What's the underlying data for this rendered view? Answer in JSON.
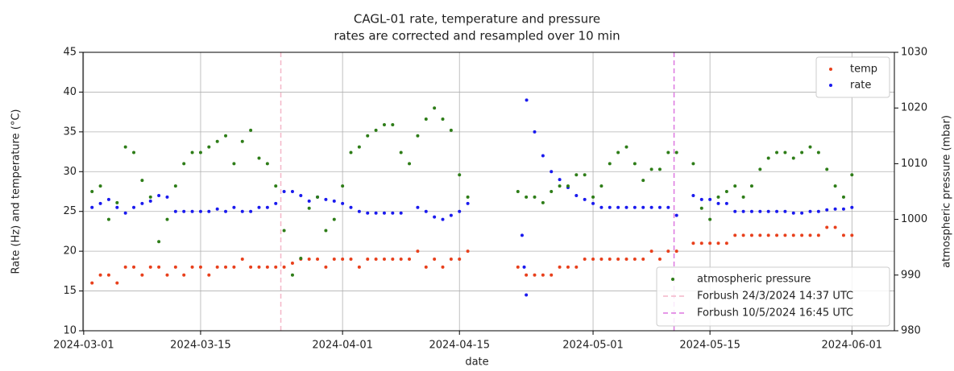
{
  "chart_data": {
    "type": "scatter",
    "title": "CAGL-01 rate, temperature and pressure",
    "subtitle": "rates are corrected and resampled over 10 min",
    "xlabel": "date",
    "ylabel": "Rate (Hz) and temperature (°C)",
    "y2label": "atmospheric pressure (mbar)",
    "xlim": [
      "2024-02-29T22:00",
      "2024-06-06T02:00"
    ],
    "xticks": [
      "2024-03-01",
      "2024-03-15",
      "2024-04-01",
      "2024-04-15",
      "2024-05-01",
      "2024-05-15",
      "2024-06-01"
    ],
    "ylim": [
      10,
      45
    ],
    "yticks": [
      10,
      15,
      20,
      25,
      30,
      35,
      40,
      45
    ],
    "y2lim": [
      980,
      1030
    ],
    "y2ticks": [
      980,
      990,
      1000,
      1010,
      1020,
      1030
    ],
    "grid": true,
    "legend": "upper right",
    "legend2": "lower right",
    "series": [
      {
        "name": "temp",
        "color": "#e8401c",
        "legend": 1,
        "x": [
          "2024-03-02",
          "2024-03-03",
          "2024-03-04",
          "2024-03-05",
          "2024-03-06",
          "2024-03-07",
          "2024-03-08",
          "2024-03-09",
          "2024-03-10",
          "2024-03-11",
          "2024-03-12",
          "2024-03-13",
          "2024-03-14",
          "2024-03-15",
          "2024-03-16",
          "2024-03-17",
          "2024-03-18",
          "2024-03-19",
          "2024-03-20",
          "2024-03-21",
          "2024-03-22",
          "2024-03-23",
          "2024-03-24",
          "2024-03-25",
          "2024-03-26",
          "2024-03-27",
          "2024-03-28",
          "2024-03-29",
          "2024-03-30",
          "2024-03-31",
          "2024-04-01",
          "2024-04-02",
          "2024-04-03",
          "2024-04-04",
          "2024-04-05",
          "2024-04-06",
          "2024-04-07",
          "2024-04-08",
          "2024-04-09",
          "2024-04-10",
          "2024-04-11",
          "2024-04-12",
          "2024-04-13",
          "2024-04-14",
          "2024-04-15",
          "2024-04-16",
          "2024-04-22",
          "2024-04-23",
          "2024-04-24",
          "2024-04-25",
          "2024-04-26",
          "2024-04-27",
          "2024-04-28",
          "2024-04-29",
          "2024-04-30",
          "2024-05-01",
          "2024-05-02",
          "2024-05-03",
          "2024-05-04",
          "2024-05-05",
          "2024-05-06",
          "2024-05-07",
          "2024-05-08",
          "2024-05-09",
          "2024-05-10",
          "2024-05-11",
          "2024-05-13",
          "2024-05-14",
          "2024-05-15",
          "2024-05-16",
          "2024-05-17",
          "2024-05-18",
          "2024-05-19",
          "2024-05-20",
          "2024-05-21",
          "2024-05-22",
          "2024-05-23",
          "2024-05-24",
          "2024-05-25",
          "2024-05-26",
          "2024-05-27",
          "2024-05-28",
          "2024-05-29",
          "2024-05-30",
          "2024-05-31",
          "2024-06-01"
        ],
        "values": [
          16,
          17,
          17,
          16,
          18,
          18,
          17,
          18,
          18,
          17,
          18,
          17,
          18,
          18,
          17,
          18,
          18,
          18,
          19,
          18,
          18,
          18,
          18,
          18,
          18.5,
          19,
          19,
          19,
          18,
          19,
          19,
          19,
          18,
          19,
          19,
          19,
          19,
          19,
          19,
          20,
          18,
          19,
          18,
          19,
          19,
          20,
          18,
          17,
          17,
          17,
          17,
          18,
          18,
          18,
          19,
          19,
          19,
          19,
          19,
          19,
          19,
          19,
          20,
          19,
          20,
          20,
          21,
          21,
          21,
          21,
          21,
          22,
          22,
          22,
          22,
          22,
          22,
          22,
          22,
          22,
          22,
          22,
          23,
          23,
          22,
          22
        ]
      },
      {
        "name": "rate",
        "color": "#1a1aee",
        "legend": 1,
        "x": [
          "2024-03-02",
          "2024-03-03",
          "2024-03-04",
          "2024-03-05",
          "2024-03-06",
          "2024-03-07",
          "2024-03-08",
          "2024-03-09",
          "2024-03-10",
          "2024-03-11",
          "2024-03-12",
          "2024-03-13",
          "2024-03-14",
          "2024-03-15",
          "2024-03-16",
          "2024-03-17",
          "2024-03-18",
          "2024-03-19",
          "2024-03-20",
          "2024-03-21",
          "2024-03-22",
          "2024-03-23",
          "2024-03-24",
          "2024-03-25",
          "2024-03-26",
          "2024-03-27",
          "2024-03-28",
          "2024-03-29",
          "2024-03-30",
          "2024-03-31",
          "2024-04-01",
          "2024-04-02",
          "2024-04-03",
          "2024-04-04",
          "2024-04-05",
          "2024-04-06",
          "2024-04-07",
          "2024-04-08",
          "2024-04-10",
          "2024-04-11",
          "2024-04-12",
          "2024-04-13",
          "2024-04-14",
          "2024-04-15",
          "2024-04-16",
          "2024-04-22T12:00",
          "2024-04-22T18:00",
          "2024-04-23T00:00",
          "2024-04-23T01:00",
          "2024-04-24",
          "2024-04-25",
          "2024-04-26",
          "2024-04-27",
          "2024-04-28",
          "2024-04-29",
          "2024-04-30",
          "2024-05-01",
          "2024-05-02",
          "2024-05-03",
          "2024-05-04",
          "2024-05-05",
          "2024-05-06",
          "2024-05-07",
          "2024-05-08",
          "2024-05-09",
          "2024-05-10",
          "2024-05-11",
          "2024-05-13",
          "2024-05-14",
          "2024-05-15",
          "2024-05-16",
          "2024-05-17",
          "2024-05-18",
          "2024-05-19",
          "2024-05-20",
          "2024-05-21",
          "2024-05-22",
          "2024-05-23",
          "2024-05-24",
          "2024-05-25",
          "2024-05-26",
          "2024-05-27",
          "2024-05-28",
          "2024-05-29",
          "2024-05-30",
          "2024-05-31",
          "2024-06-01"
        ],
        "values": [
          25.5,
          26,
          26.5,
          25.5,
          24.8,
          25.5,
          26,
          26.3,
          27,
          26.8,
          25,
          25,
          25,
          25,
          25,
          25.3,
          25,
          25.5,
          25,
          25,
          25.5,
          25.5,
          26,
          27.5,
          27.5,
          27,
          26.3,
          26.8,
          26.5,
          26.3,
          26,
          25.5,
          25,
          24.8,
          24.8,
          24.8,
          24.8,
          24.8,
          25.5,
          25,
          24.3,
          24,
          24.5,
          25,
          26,
          22,
          18,
          14.5,
          39,
          35,
          32,
          30,
          29,
          28,
          27,
          26.5,
          26,
          25.5,
          25.5,
          25.5,
          25.5,
          25.5,
          25.5,
          25.5,
          25.5,
          25.5,
          24.5,
          27,
          26.5,
          26.5,
          26,
          26,
          25,
          25,
          25,
          25,
          25,
          25,
          25,
          24.8,
          24.8,
          25,
          25,
          25.2,
          25.3,
          25.3,
          25.5
        ]
      },
      {
        "name": "atmospheric pressure",
        "color": "#2e7d18",
        "legend": 2,
        "axis": "y2",
        "x": [
          "2024-03-02",
          "2024-03-03",
          "2024-03-04",
          "2024-03-05",
          "2024-03-06",
          "2024-03-07",
          "2024-03-08",
          "2024-03-09",
          "2024-03-10",
          "2024-03-11",
          "2024-03-12",
          "2024-03-13",
          "2024-03-14",
          "2024-03-15",
          "2024-03-16",
          "2024-03-17",
          "2024-03-18",
          "2024-03-19",
          "2024-03-20",
          "2024-03-21",
          "2024-03-22",
          "2024-03-23",
          "2024-03-24",
          "2024-03-25",
          "2024-03-26",
          "2024-03-27",
          "2024-03-28",
          "2024-03-29",
          "2024-03-30",
          "2024-03-31",
          "2024-04-01",
          "2024-04-02",
          "2024-04-03",
          "2024-04-04",
          "2024-04-05",
          "2024-04-06",
          "2024-04-07",
          "2024-04-08",
          "2024-04-09",
          "2024-04-10",
          "2024-04-11",
          "2024-04-12",
          "2024-04-13",
          "2024-04-14",
          "2024-04-15",
          "2024-04-16",
          "2024-04-22",
          "2024-04-23",
          "2024-04-24",
          "2024-04-25",
          "2024-04-26",
          "2024-04-27",
          "2024-04-28",
          "2024-04-29",
          "2024-04-30",
          "2024-05-01",
          "2024-05-02",
          "2024-05-03",
          "2024-05-04",
          "2024-05-05",
          "2024-05-06",
          "2024-05-07",
          "2024-05-08",
          "2024-05-09",
          "2024-05-10",
          "2024-05-11",
          "2024-05-13",
          "2024-05-14",
          "2024-05-15",
          "2024-05-16",
          "2024-05-17",
          "2024-05-18",
          "2024-05-19",
          "2024-05-20",
          "2024-05-21",
          "2024-05-22",
          "2024-05-23",
          "2024-05-24",
          "2024-05-25",
          "2024-05-26",
          "2024-05-27",
          "2024-05-28",
          "2024-05-29",
          "2024-05-30",
          "2024-05-31",
          "2024-06-01"
        ],
        "values": [
          1005,
          1006,
          1000,
          1003,
          1013,
          1012,
          1007,
          1004,
          996,
          1000,
          1006,
          1010,
          1012,
          1012,
          1013,
          1014,
          1015,
          1010,
          1014,
          1016,
          1011,
          1010,
          1006,
          998,
          990,
          993,
          1002,
          1004,
          998,
          1000,
          1006,
          1012,
          1013,
          1015,
          1016,
          1017,
          1017,
          1012,
          1010,
          1015,
          1018,
          1020,
          1018,
          1016,
          1008,
          1004,
          1005,
          1004,
          1004,
          1003,
          1005,
          1006,
          1006,
          1008,
          1008,
          1004,
          1006,
          1010,
          1012,
          1013,
          1010,
          1007,
          1009,
          1009,
          1012,
          1012,
          1010,
          1002,
          1000,
          1004,
          1005,
          1006,
          1004,
          1006,
          1009,
          1011,
          1012,
          1012,
          1011,
          1012,
          1013,
          1012,
          1009,
          1006,
          1004,
          1008
        ]
      }
    ],
    "vlines": [
      {
        "name": "Forbush 24/3/2024 14:37 UTC",
        "x": "2024-03-24T14:37",
        "color": "#f4b6c8"
      },
      {
        "name": "Forbush 10/5/2024 16:45 UTC",
        "x": "2024-05-10T16:45",
        "color": "#dd77e0"
      }
    ]
  }
}
